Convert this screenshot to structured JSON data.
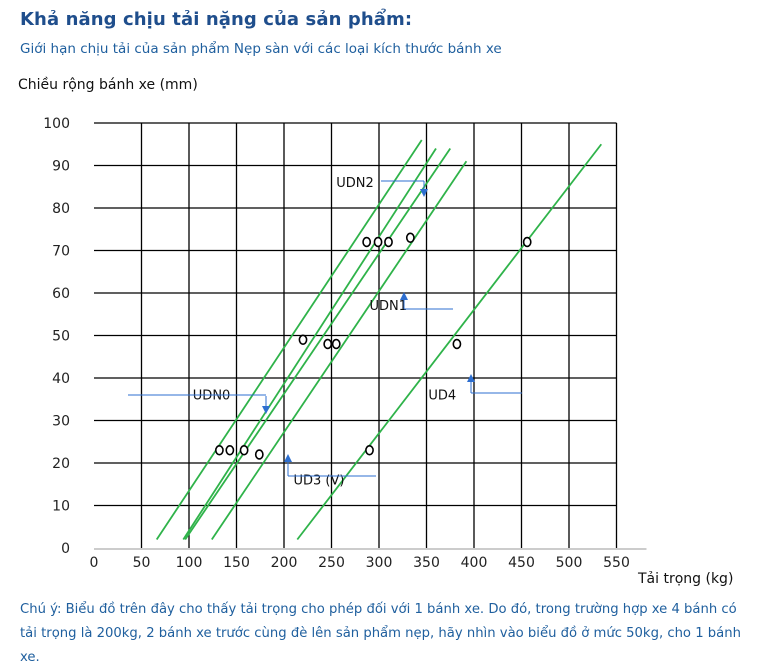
{
  "header": {
    "title": "Khả năng chịu tải nặng của sản phẩm:",
    "subtitle": "Giới hạn chịu tải của sản phẩm Nẹp sàn với các loại kích thước bánh xe"
  },
  "note": "Chú ý: Biểu đồ trên đây cho thấy tải trọng cho phép đối với 1 bánh xe. Do đó, trong trường hợp xe 4 bánh có tải trọng là 200kg, 2 bánh xe trước cùng đè lên sản phẩm nẹp, hãy nhìn vào biểu đồ ở mức 50kg, cho 1 bánh xe.",
  "colors": {
    "line": "#2fb34a",
    "grid": "#000000",
    "marker": "#000000",
    "title": "#1f4e8c",
    "text": "#1f5f9e",
    "arrow": "#2e6fd0"
  },
  "chart_data": {
    "type": "line",
    "title": "",
    "xlabel": "Tải trọng (kg)",
    "ylabel": "Chiều rộng bánh xe (mm)",
    "xlim": [
      0,
      550
    ],
    "ylim": [
      0,
      100
    ],
    "x_ticks": [
      "0",
      "50",
      "100",
      "150",
      "200",
      "250",
      "300",
      "350",
      "400",
      "450",
      "500",
      "550"
    ],
    "y_ticks": [
      "0",
      "10",
      "20",
      "30",
      "40",
      "50",
      "60",
      "70",
      "80",
      "90",
      "100"
    ],
    "grid": true,
    "series_lines": [
      {
        "x": [
          66,
          345
        ],
        "y": [
          2,
          96
        ]
      },
      {
        "x": [
          94,
          360
        ],
        "y": [
          2,
          94
        ]
      },
      {
        "x": [
          96,
          375
        ],
        "y": [
          2,
          94
        ]
      },
      {
        "x": [
          124,
          392
        ],
        "y": [
          2,
          91
        ]
      },
      {
        "x": [
          214,
          534
        ],
        "y": [
          2,
          95
        ]
      }
    ],
    "markers": [
      {
        "x": 132,
        "y": 23
      },
      {
        "x": 143,
        "y": 23
      },
      {
        "x": 158,
        "y": 23
      },
      {
        "x": 174,
        "y": 22
      },
      {
        "x": 220,
        "y": 49
      },
      {
        "x": 246,
        "y": 48
      },
      {
        "x": 255,
        "y": 48
      },
      {
        "x": 287,
        "y": 72
      },
      {
        "x": 299,
        "y": 72
      },
      {
        "x": 310,
        "y": 72
      },
      {
        "x": 333,
        "y": 73
      },
      {
        "x": 290,
        "y": 23
      },
      {
        "x": 382,
        "y": 48
      },
      {
        "x": 456,
        "y": 72
      }
    ],
    "annotations": [
      {
        "text": "UDN0",
        "x": 104,
        "y": 35
      },
      {
        "text": "UDN1",
        "x": 290,
        "y": 56
      },
      {
        "text": "UDN2",
        "x": 255,
        "y": 85
      },
      {
        "text": "UD3 (V)",
        "x": 210,
        "y": 15
      },
      {
        "text": "UD4",
        "x": 352,
        "y": 35
      }
    ]
  }
}
